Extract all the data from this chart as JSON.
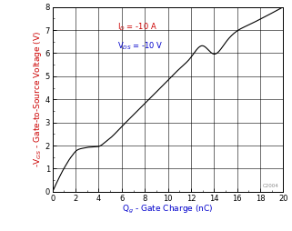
{
  "xlabel": "Q$_g$ - Gate Charge (nC)",
  "ylabel": "-V$_{GS}$ - Gate-to-Source Voltage (V)",
  "xlim": [
    0,
    20
  ],
  "ylim": [
    0,
    8
  ],
  "xticks": [
    0,
    2,
    4,
    6,
    8,
    10,
    12,
    14,
    16,
    18,
    20
  ],
  "yticks": [
    0,
    1,
    2,
    3,
    4,
    5,
    6,
    7,
    8
  ],
  "legend_line1": "I$_D$ = -10 A",
  "legend_line2": "V$_{DS}$ = -10 V",
  "legend_color1": "#cc0000",
  "legend_color2": "#0000cc",
  "watermark": "C2004",
  "grid_color": "#000000",
  "curve_color": "#000000",
  "background_color": "#ffffff",
  "ylabel_color": "#cc0000",
  "xlabel_color": "#0000cc",
  "curve_x": [
    0,
    0.3,
    0.6,
    0.9,
    1.2,
    1.5,
    1.8,
    2.0,
    2.2,
    2.5,
    2.8,
    3.0,
    3.2,
    3.5,
    3.8,
    4.0,
    4.5,
    5.0,
    6.0,
    7.0,
    8.0,
    9.0,
    10.0,
    11.0,
    12.0,
    13.0,
    14.0,
    15.0,
    16.0,
    17.0,
    18.0,
    19.0,
    20.0
  ],
  "curve_y": [
    0,
    0.33,
    0.64,
    0.93,
    1.19,
    1.43,
    1.63,
    1.75,
    1.82,
    1.87,
    1.9,
    1.92,
    1.93,
    1.94,
    1.95,
    1.96,
    2.12,
    2.32,
    2.82,
    3.32,
    3.82,
    4.32,
    4.82,
    5.32,
    5.82,
    6.32,
    5.96,
    6.46,
    6.96,
    7.22,
    7.47,
    7.73,
    8.0
  ]
}
